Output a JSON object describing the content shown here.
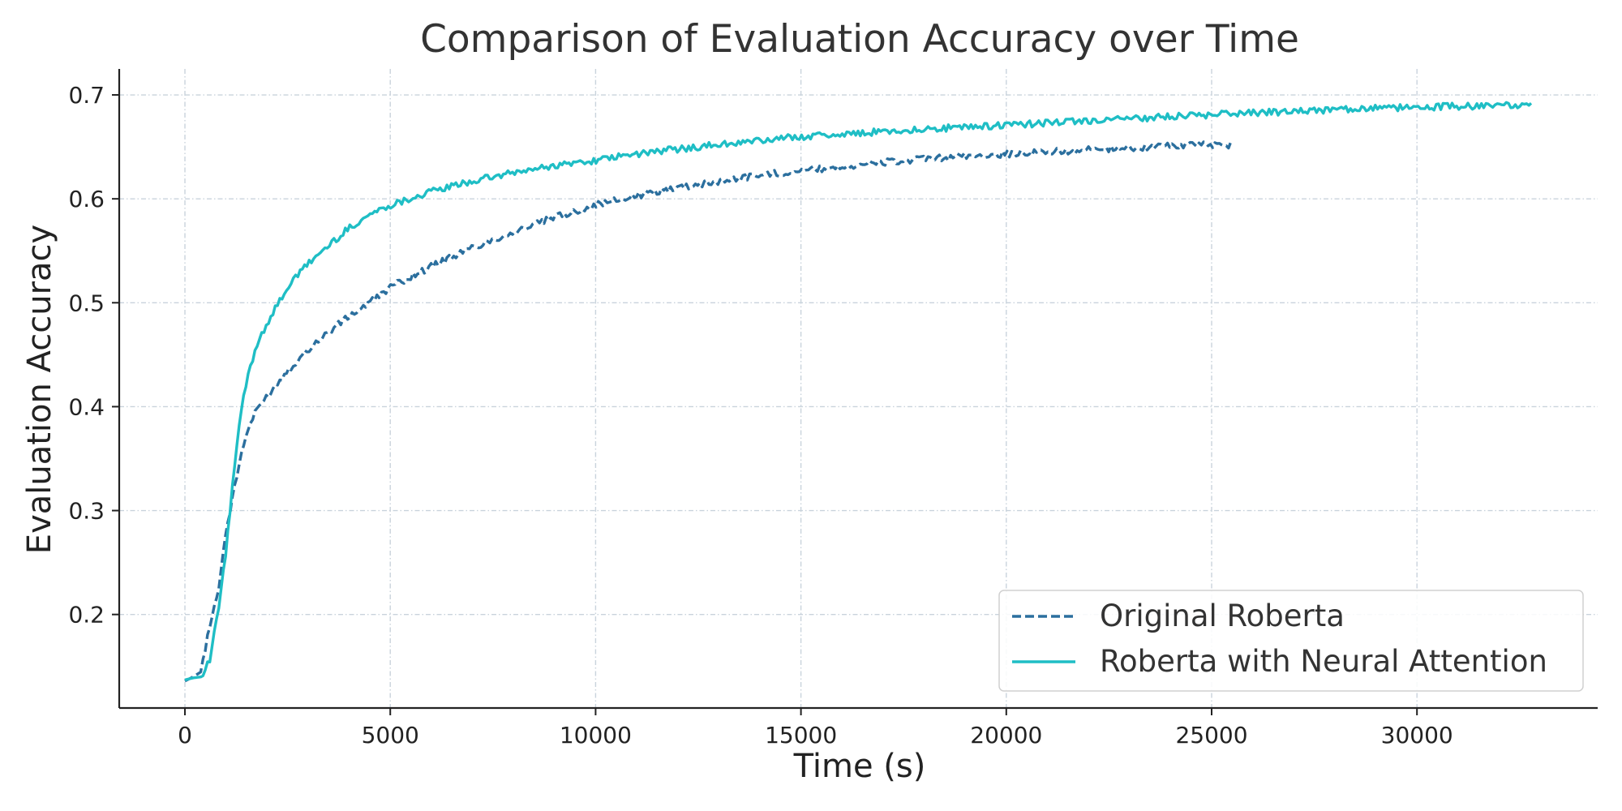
{
  "chart_data": {
    "type": "line",
    "title": "Comparison of Evaluation Accuracy over Time",
    "xlabel": "Time (s)",
    "ylabel": "Evaluation Accuracy",
    "xlim": [
      -1600,
      34400
    ],
    "ylim": [
      0.11,
      0.725
    ],
    "x_ticks": [
      0,
      5000,
      10000,
      15000,
      20000,
      25000,
      30000
    ],
    "x_tick_labels": [
      "0",
      "5000",
      "10000",
      "15000",
      "20000",
      "25000",
      "30000"
    ],
    "y_ticks": [
      0.2,
      0.3,
      0.4,
      0.5,
      0.6,
      0.7
    ],
    "y_tick_labels": [
      "0.2",
      "0.3",
      "0.4",
      "0.5",
      "0.6",
      "0.7"
    ],
    "grid": true,
    "legend_position": "bottom-right",
    "series": [
      {
        "name": "Original Roberta",
        "color": "#2b6f9e",
        "style": "dashed",
        "x": [
          0,
          200,
          400,
          600,
          800,
          1000,
          1200,
          1400,
          1600,
          1800,
          2000,
          2500,
          3000,
          3500,
          4000,
          4500,
          5000,
          6000,
          7000,
          8000,
          9000,
          10000,
          11000,
          12000,
          13000,
          14000,
          15000,
          16000,
          17000,
          18000,
          19000,
          20000,
          21000,
          22000,
          23000,
          24000,
          25000,
          25500
        ],
        "y": [
          0.136,
          0.14,
          0.145,
          0.19,
          0.22,
          0.28,
          0.32,
          0.36,
          0.385,
          0.4,
          0.41,
          0.435,
          0.455,
          0.472,
          0.487,
          0.5,
          0.515,
          0.535,
          0.553,
          0.568,
          0.582,
          0.594,
          0.603,
          0.611,
          0.617,
          0.623,
          0.627,
          0.631,
          0.635,
          0.638,
          0.641,
          0.643,
          0.645,
          0.647,
          0.649,
          0.651,
          0.652,
          0.652
        ]
      },
      {
        "name": "Roberta with Neural Attention",
        "color": "#1fbec5",
        "style": "solid",
        "x": [
          0,
          200,
          400,
          600,
          800,
          1000,
          1200,
          1400,
          1600,
          1800,
          2000,
          2500,
          3000,
          3500,
          4000,
          4500,
          5000,
          6000,
          7000,
          8000,
          9000,
          10000,
          11000,
          12000,
          13000,
          14000,
          15000,
          16000,
          17000,
          18000,
          19000,
          20000,
          21000,
          22000,
          23000,
          24000,
          25000,
          26000,
          27000,
          28000,
          29000,
          30000,
          31000,
          32000,
          32800
        ],
        "y": [
          0.137,
          0.139,
          0.14,
          0.155,
          0.2,
          0.26,
          0.34,
          0.405,
          0.44,
          0.465,
          0.48,
          0.515,
          0.538,
          0.555,
          0.572,
          0.585,
          0.594,
          0.607,
          0.617,
          0.625,
          0.632,
          0.637,
          0.643,
          0.648,
          0.652,
          0.656,
          0.66,
          0.662,
          0.665,
          0.667,
          0.669,
          0.671,
          0.673,
          0.675,
          0.677,
          0.679,
          0.681,
          0.683,
          0.684,
          0.686,
          0.687,
          0.688,
          0.689,
          0.69,
          0.691
        ]
      }
    ]
  }
}
